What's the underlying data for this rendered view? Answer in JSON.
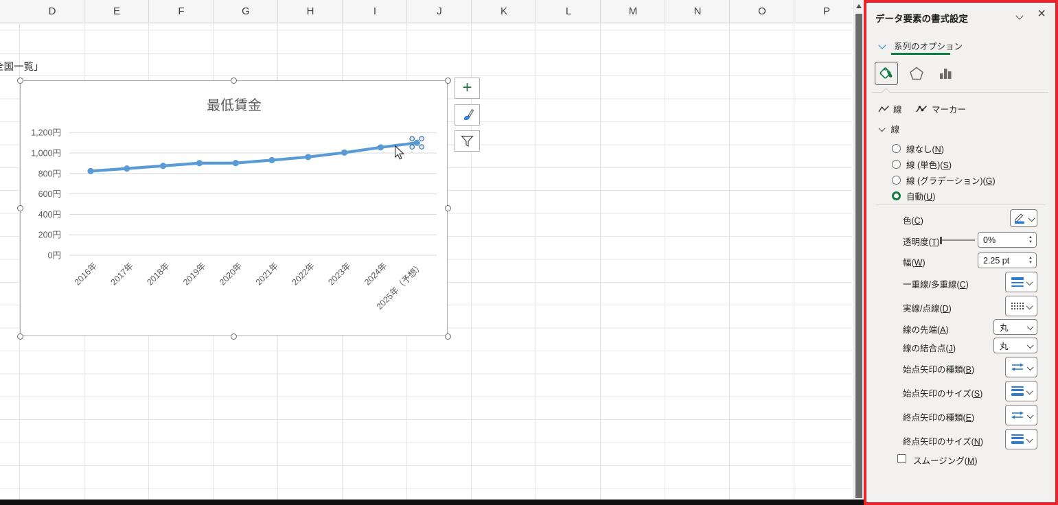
{
  "spreadsheet": {
    "column_headers": [
      "D",
      "E",
      "F",
      "G",
      "H",
      "I",
      "J",
      "K",
      "L",
      "M",
      "N",
      "O",
      "P"
    ],
    "cell_text": "全国一覧」"
  },
  "chart_data": {
    "type": "line",
    "title": "最低賃金",
    "categories": [
      "2016年",
      "2017年",
      "2018年",
      "2019年",
      "2020年",
      "2021年",
      "2022年",
      "2023年",
      "2024年",
      "2025年（予想）"
    ],
    "series": [
      {
        "name": "最低賃金",
        "values": [
          823,
          848,
          874,
          901,
          902,
          930,
          961,
          1004,
          1055,
          1100
        ]
      }
    ],
    "ylim": [
      0,
      1200
    ],
    "y_ticks": [
      {
        "label": "1,200円",
        "value": 1200
      },
      {
        "label": "1,000円",
        "value": 1000
      },
      {
        "label": "800円",
        "value": 800
      },
      {
        "label": "600円",
        "value": 600
      },
      {
        "label": "400円",
        "value": 400
      },
      {
        "label": "200円",
        "value": 200
      },
      {
        "label": "0円",
        "value": 0
      }
    ],
    "grid": true,
    "legend": "none",
    "line_color": "#5B9BD5",
    "label_color": "#595959",
    "gridline_color": "#d9d9d9",
    "selected_point_index": 9
  },
  "chart_buttons": {
    "elements": "chart-elements-plus",
    "styles": "chart-styles-brush",
    "filters": "chart-filters-funnel"
  },
  "panel": {
    "title": "データ要素の書式設定",
    "series_options_label": "系列のオプション",
    "subtab_line": "線",
    "subtab_marker": "マーカー",
    "line_section": "線",
    "radio_no_line": "線なし(N)",
    "radio_solid": "線 (単色)(S)",
    "radio_gradient": "線 (グラデーション)(G)",
    "radio_auto": "自動(U)",
    "selected_radio": "自動(U)",
    "color_label": "色(C)",
    "transparency_label": "透明度(T)",
    "transparency_value": "0%",
    "width_label": "幅(W)",
    "width_value": "2.25 pt",
    "compound_label": "一重線/多重線(C)",
    "dash_label": "実線/点線(D)",
    "cap_label": "線の先端(A)",
    "cap_value": "丸",
    "join_label": "線の結合点(J)",
    "join_value": "丸",
    "begin_arrow_type_label": "始点矢印の種類(B)",
    "begin_arrow_size_label": "始点矢印のサイズ(S)",
    "end_arrow_type_label": "終点矢印の種類(E)",
    "end_arrow_size_label": "終点矢印のサイズ(N)",
    "smoothing_label": "スムージング(M)",
    "smoothing_checked": false,
    "accent_green": "#107C41",
    "accent_blue": "#2b7cd3",
    "highlight_border": "#e8232a"
  }
}
